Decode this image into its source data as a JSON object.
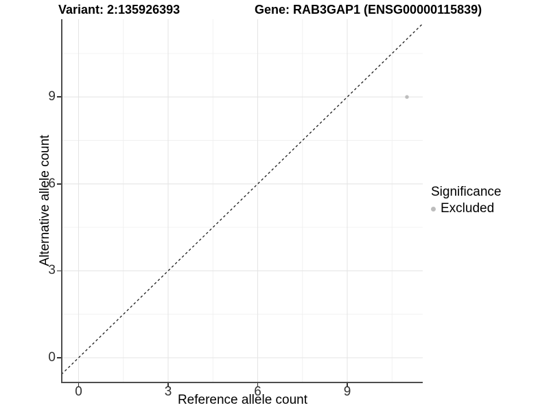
{
  "chart_data": {
    "type": "scatter",
    "title_left": "Variant: 2:135926393",
    "title_right": "Gene: RAB3GAP1 (ENSG00000115839)",
    "xlabel": "Reference allele count",
    "ylabel": "Alternative allele count",
    "xlim": [
      -0.6,
      11.5
    ],
    "ylim": [
      -0.8,
      11.7
    ],
    "x_ticks": [
      {
        "label": "0",
        "value": 0
      },
      {
        "label": "3",
        "value": 3
      },
      {
        "label": "6",
        "value": 6
      },
      {
        "label": "9",
        "value": 9
      }
    ],
    "y_ticks": [
      {
        "label": "0",
        "value": 0
      },
      {
        "label": "3",
        "value": 3
      },
      {
        "label": "6",
        "value": 6
      },
      {
        "label": "9",
        "value": 9
      }
    ],
    "gridlines": {
      "major": [
        0,
        3,
        6,
        9
      ],
      "minor": [
        1.5,
        4.5,
        7.5,
        10.5
      ]
    },
    "reference_line": {
      "type": "identity",
      "style": "dashed",
      "color": "#1a1a1a"
    },
    "points": [
      {
        "x": 11,
        "y": 9,
        "series": "Excluded"
      }
    ],
    "legend": {
      "title": "Significance",
      "position": "right",
      "items": [
        {
          "label": "Excluded",
          "color": "#bdbdbd"
        }
      ]
    },
    "colors": {
      "point": "#bdbdbd",
      "gridline_major": "#e5e5e5",
      "gridline_minor": "#f0f0f0",
      "axis_line": "#4d4d4d",
      "tick_mark": "#333333",
      "tick_text": "#303030",
      "text": "#000000"
    }
  }
}
